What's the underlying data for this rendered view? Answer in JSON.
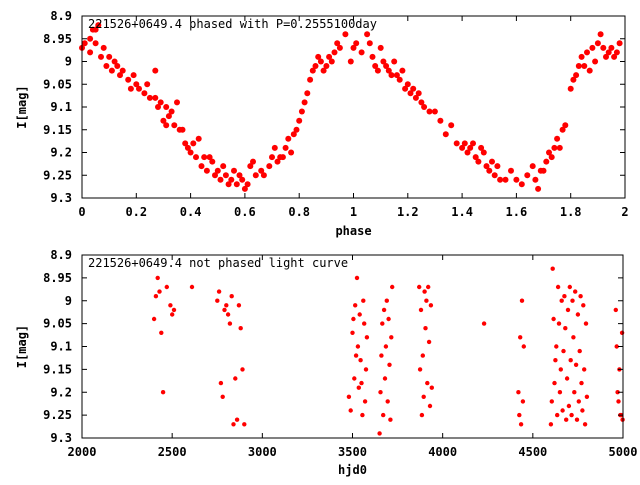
{
  "chart_data": [
    {
      "type": "scatter",
      "title": "221526+0649.4 phased with P=0.2555100day",
      "xlabel": "phase",
      "ylabel": "I[mag]",
      "xlim": [
        0,
        2
      ],
      "ylim": [
        8.9,
        9.3
      ],
      "y_inverted": true,
      "x_ticks": [
        "0",
        "0.2",
        "0.4",
        "0.6",
        "0.8",
        "1",
        "1.2",
        "1.4",
        "1.6",
        "1.8",
        "2"
      ],
      "y_ticks": [
        "8.9",
        "8.95",
        "9",
        "9.05",
        "9.1",
        "9.15",
        "9.2",
        "9.25",
        "9.3"
      ],
      "marker_color": "#ff0000",
      "points": [
        [
          0.0,
          8.97
        ],
        [
          0.01,
          8.96
        ],
        [
          0.03,
          8.95
        ],
        [
          0.04,
          8.93
        ],
        [
          0.05,
          8.93
        ],
        [
          0.06,
          8.92
        ],
        [
          0.03,
          8.98
        ],
        [
          0.05,
          8.96
        ],
        [
          0.07,
          8.99
        ],
        [
          0.08,
          8.97
        ],
        [
          0.09,
          9.01
        ],
        [
          0.1,
          8.99
        ],
        [
          0.11,
          9.02
        ],
        [
          0.12,
          9.0
        ],
        [
          0.13,
          9.01
        ],
        [
          0.14,
          9.03
        ],
        [
          0.15,
          9.02
        ],
        [
          0.17,
          9.04
        ],
        [
          0.19,
          9.03
        ],
        [
          0.2,
          9.05
        ],
        [
          0.18,
          9.06
        ],
        [
          0.21,
          9.06
        ],
        [
          0.23,
          9.07
        ],
        [
          0.25,
          9.08
        ],
        [
          0.24,
          9.05
        ],
        [
          0.27,
          9.08
        ],
        [
          0.28,
          9.1
        ],
        [
          0.29,
          9.09
        ],
        [
          0.27,
          9.02
        ],
        [
          0.31,
          9.1
        ],
        [
          0.33,
          9.11
        ],
        [
          0.3,
          9.13
        ],
        [
          0.31,
          9.14
        ],
        [
          0.32,
          9.12
        ],
        [
          0.34,
          9.14
        ],
        [
          0.35,
          9.09
        ],
        [
          0.36,
          9.15
        ],
        [
          0.37,
          9.15
        ],
        [
          0.38,
          9.18
        ],
        [
          0.39,
          9.19
        ],
        [
          0.4,
          9.2
        ],
        [
          0.41,
          9.18
        ],
        [
          0.42,
          9.21
        ],
        [
          0.43,
          9.17
        ],
        [
          0.44,
          9.23
        ],
        [
          0.45,
          9.21
        ],
        [
          0.46,
          9.24
        ],
        [
          0.47,
          9.21
        ],
        [
          0.48,
          9.22
        ],
        [
          0.49,
          9.25
        ],
        [
          0.5,
          9.24
        ],
        [
          0.51,
          9.26
        ],
        [
          0.52,
          9.23
        ],
        [
          0.53,
          9.25
        ],
        [
          0.54,
          9.27
        ],
        [
          0.55,
          9.26
        ],
        [
          0.56,
          9.24
        ],
        [
          0.57,
          9.27
        ],
        [
          0.58,
          9.25
        ],
        [
          0.59,
          9.26
        ],
        [
          0.6,
          9.28
        ],
        [
          0.61,
          9.27
        ],
        [
          0.62,
          9.23
        ],
        [
          0.63,
          9.22
        ],
        [
          0.64,
          9.25
        ],
        [
          0.66,
          9.24
        ],
        [
          0.67,
          9.25
        ],
        [
          0.69,
          9.23
        ],
        [
          0.7,
          9.21
        ],
        [
          0.71,
          9.19
        ],
        [
          0.72,
          9.22
        ],
        [
          0.73,
          9.21
        ],
        [
          0.74,
          9.21
        ],
        [
          0.75,
          9.19
        ],
        [
          0.76,
          9.17
        ],
        [
          0.77,
          9.2
        ],
        [
          0.78,
          9.16
        ],
        [
          0.79,
          9.15
        ],
        [
          0.8,
          9.13
        ],
        [
          0.81,
          9.11
        ],
        [
          0.82,
          9.09
        ],
        [
          0.83,
          9.07
        ],
        [
          0.84,
          9.04
        ],
        [
          0.85,
          9.02
        ],
        [
          0.86,
          9.01
        ],
        [
          0.87,
          8.99
        ],
        [
          0.88,
          9.0
        ],
        [
          0.89,
          9.02
        ],
        [
          0.9,
          9.01
        ],
        [
          0.91,
          8.99
        ],
        [
          0.92,
          9.0
        ],
        [
          0.93,
          8.98
        ],
        [
          0.94,
          8.96
        ],
        [
          0.95,
          8.97
        ],
        [
          0.97,
          8.94
        ],
        [
          0.99,
          9.0
        ],
        [
          1.0,
          8.97
        ],
        [
          1.01,
          8.96
        ],
        [
          1.03,
          8.98
        ],
        [
          1.05,
          8.94
        ],
        [
          1.06,
          8.96
        ],
        [
          1.07,
          8.99
        ],
        [
          1.08,
          9.01
        ],
        [
          1.09,
          9.02
        ],
        [
          1.1,
          8.97
        ],
        [
          1.11,
          9.0
        ],
        [
          1.12,
          9.01
        ],
        [
          1.13,
          9.02
        ],
        [
          1.14,
          9.03
        ],
        [
          1.15,
          9.0
        ],
        [
          1.16,
          9.03
        ],
        [
          1.17,
          9.04
        ],
        [
          1.18,
          9.02
        ],
        [
          1.19,
          9.06
        ],
        [
          1.2,
          9.05
        ],
        [
          1.21,
          9.07
        ],
        [
          1.22,
          9.06
        ],
        [
          1.23,
          9.08
        ],
        [
          1.24,
          9.07
        ],
        [
          1.25,
          9.09
        ],
        [
          1.26,
          9.1
        ],
        [
          1.28,
          9.11
        ],
        [
          1.3,
          9.11
        ],
        [
          1.32,
          9.13
        ],
        [
          1.34,
          9.16
        ],
        [
          1.36,
          9.14
        ],
        [
          1.38,
          9.18
        ],
        [
          1.4,
          9.19
        ],
        [
          1.41,
          9.18
        ],
        [
          1.42,
          9.2
        ],
        [
          1.43,
          9.19
        ],
        [
          1.44,
          9.18
        ],
        [
          1.45,
          9.21
        ],
        [
          1.46,
          9.22
        ],
        [
          1.47,
          9.19
        ],
        [
          1.48,
          9.2
        ],
        [
          1.49,
          9.23
        ],
        [
          1.5,
          9.24
        ],
        [
          1.51,
          9.22
        ],
        [
          1.52,
          9.25
        ],
        [
          1.53,
          9.23
        ],
        [
          1.54,
          9.26
        ],
        [
          1.56,
          9.26
        ],
        [
          1.58,
          9.24
        ],
        [
          1.6,
          9.26
        ],
        [
          1.62,
          9.27
        ],
        [
          1.64,
          9.25
        ],
        [
          1.66,
          9.23
        ],
        [
          1.67,
          9.26
        ],
        [
          1.68,
          9.28
        ],
        [
          1.69,
          9.24
        ],
        [
          1.7,
          9.24
        ],
        [
          1.71,
          9.22
        ],
        [
          1.72,
          9.2
        ],
        [
          1.73,
          9.21
        ],
        [
          1.74,
          9.19
        ],
        [
          1.75,
          9.17
        ],
        [
          1.76,
          9.19
        ],
        [
          1.77,
          9.15
        ],
        [
          1.78,
          9.14
        ],
        [
          1.8,
          9.06
        ],
        [
          1.81,
          9.04
        ],
        [
          1.82,
          9.03
        ],
        [
          1.83,
          9.01
        ],
        [
          1.84,
          8.99
        ],
        [
          1.85,
          9.01
        ],
        [
          1.86,
          8.98
        ],
        [
          1.87,
          9.02
        ],
        [
          1.88,
          8.97
        ],
        [
          1.89,
          9.0
        ],
        [
          1.9,
          8.96
        ],
        [
          1.91,
          8.94
        ],
        [
          1.92,
          8.97
        ],
        [
          1.93,
          8.99
        ],
        [
          1.94,
          8.98
        ],
        [
          1.95,
          8.97
        ],
        [
          1.96,
          8.99
        ],
        [
          1.97,
          8.98
        ],
        [
          1.98,
          8.96
        ]
      ]
    },
    {
      "type": "scatter",
      "title": "221526+0649.4 not phased light curve",
      "xlabel": "hjd0",
      "ylabel": "I[mag]",
      "xlim": [
        2000,
        5000
      ],
      "ylim": [
        8.9,
        9.3
      ],
      "y_inverted": true,
      "x_ticks": [
        "2000",
        "2500",
        "3000",
        "3500",
        "4000",
        "4500",
        "5000"
      ],
      "y_ticks": [
        "8.9",
        "8.95",
        "9",
        "9.05",
        "9.1",
        "9.15",
        "9.2",
        "9.25",
        "9.3"
      ],
      "marker_color": "#ff0000",
      "points": [
        [
          2400,
          9.04
        ],
        [
          2410,
          8.99
        ],
        [
          2420,
          8.95
        ],
        [
          2430,
          8.98
        ],
        [
          2440,
          9.07
        ],
        [
          2450,
          9.2
        ],
        [
          2470,
          8.97
        ],
        [
          2490,
          9.01
        ],
        [
          2500,
          9.03
        ],
        [
          2510,
          9.02
        ],
        [
          2610,
          8.97
        ],
        [
          2750,
          9.0
        ],
        [
          2760,
          8.98
        ],
        [
          2770,
          9.18
        ],
        [
          2780,
          9.21
        ],
        [
          2790,
          9.02
        ],
        [
          2800,
          9.01
        ],
        [
          2810,
          9.03
        ],
        [
          2820,
          9.05
        ],
        [
          2830,
          8.99
        ],
        [
          2840,
          9.27
        ],
        [
          2850,
          9.17
        ],
        [
          2860,
          9.26
        ],
        [
          2870,
          9.01
        ],
        [
          2880,
          9.06
        ],
        [
          2890,
          9.15
        ],
        [
          2900,
          9.27
        ],
        [
          3480,
          9.21
        ],
        [
          3490,
          9.24
        ],
        [
          3500,
          9.07
        ],
        [
          3505,
          9.04
        ],
        [
          3510,
          9.17
        ],
        [
          3515,
          9.01
        ],
        [
          3520,
          9.12
        ],
        [
          3525,
          8.95
        ],
        [
          3530,
          9.1
        ],
        [
          3535,
          9.19
        ],
        [
          3540,
          9.03
        ],
        [
          3545,
          9.13
        ],
        [
          3550,
          9.18
        ],
        [
          3555,
          9.25
        ],
        [
          3560,
          9.0
        ],
        [
          3565,
          9.05
        ],
        [
          3570,
          9.22
        ],
        [
          3575,
          9.15
        ],
        [
          3580,
          9.08
        ],
        [
          3650,
          9.29
        ],
        [
          3655,
          9.2
        ],
        [
          3660,
          9.12
        ],
        [
          3665,
          9.05
        ],
        [
          3670,
          9.25
        ],
        [
          3675,
          9.02
        ],
        [
          3680,
          9.17
        ],
        [
          3685,
          9.1
        ],
        [
          3690,
          9.0
        ],
        [
          3695,
          9.22
        ],
        [
          3700,
          9.04
        ],
        [
          3705,
          9.14
        ],
        [
          3710,
          9.26
        ],
        [
          3715,
          9.08
        ],
        [
          3720,
          8.97
        ],
        [
          3870,
          8.97
        ],
        [
          3875,
          9.15
        ],
        [
          3880,
          9.02
        ],
        [
          3885,
          9.25
        ],
        [
          3890,
          9.12
        ],
        [
          3895,
          9.21
        ],
        [
          3900,
          8.98
        ],
        [
          3905,
          9.06
        ],
        [
          3910,
          9.0
        ],
        [
          3915,
          9.18
        ],
        [
          3920,
          8.97
        ],
        [
          3925,
          9.09
        ],
        [
          3930,
          9.23
        ],
        [
          3935,
          9.01
        ],
        [
          3940,
          9.19
        ],
        [
          4230,
          9.05
        ],
        [
          4420,
          9.2
        ],
        [
          4425,
          9.25
        ],
        [
          4430,
          9.08
        ],
        [
          4435,
          9.27
        ],
        [
          4440,
          9.0
        ],
        [
          4445,
          9.22
        ],
        [
          4450,
          9.1
        ],
        [
          4600,
          9.27
        ],
        [
          4605,
          9.22
        ],
        [
          4610,
          8.93
        ],
        [
          4615,
          9.04
        ],
        [
          4620,
          9.18
        ],
        [
          4625,
          9.13
        ],
        [
          4630,
          9.1
        ],
        [
          4635,
          9.25
        ],
        [
          4640,
          8.97
        ],
        [
          4645,
          9.05
        ],
        [
          4650,
          9.2
        ],
        [
          4655,
          9.15
        ],
        [
          4660,
          9.0
        ],
        [
          4665,
          9.24
        ],
        [
          4670,
          9.11
        ],
        [
          4675,
          8.99
        ],
        [
          4680,
          9.06
        ],
        [
          4685,
          9.26
        ],
        [
          4690,
          9.17
        ],
        [
          4695,
          9.02
        ],
        [
          4700,
          9.23
        ],
        [
          4705,
          8.97
        ],
        [
          4710,
          9.13
        ],
        [
          4715,
          9.25
        ],
        [
          4720,
          9.0
        ],
        [
          4725,
          9.08
        ],
        [
          4730,
          9.2
        ],
        [
          4735,
          8.98
        ],
        [
          4740,
          9.14
        ],
        [
          4745,
          9.26
        ],
        [
          4750,
          9.03
        ],
        [
          4755,
          9.22
        ],
        [
          4760,
          9.11
        ],
        [
          4765,
          8.99
        ],
        [
          4770,
          9.18
        ],
        [
          4775,
          9.24
        ],
        [
          4780,
          9.01
        ],
        [
          4785,
          9.15
        ],
        [
          4790,
          9.27
        ],
        [
          4795,
          9.05
        ],
        [
          4800,
          9.21
        ],
        [
          4960,
          9.02
        ],
        [
          4965,
          9.1
        ],
        [
          4970,
          9.2
        ],
        [
          4975,
          9.22
        ],
        [
          4980,
          9.15
        ],
        [
          4985,
          9.25
        ],
        [
          4990,
          9.25
        ],
        [
          4995,
          9.07
        ],
        [
          4998,
          9.26
        ]
      ]
    }
  ]
}
